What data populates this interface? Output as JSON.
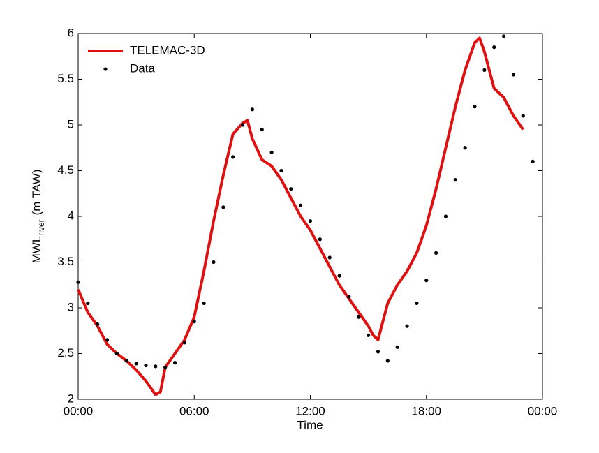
{
  "chart_data": {
    "type": "line",
    "xlabel": "Time",
    "ylabel": {
      "main": "MWL",
      "sub": "river",
      "unit": "(m TAW)"
    },
    "xlim": [
      0,
      24
    ],
    "xticks": [
      {
        "value": 0,
        "label": "00:00"
      },
      {
        "value": 6,
        "label": "06:00"
      },
      {
        "value": 12,
        "label": "12:00"
      },
      {
        "value": 18,
        "label": "18:00"
      },
      {
        "value": 24,
        "label": "00:00"
      }
    ],
    "ylim": [
      2,
      6
    ],
    "yticks": [
      2,
      2.5,
      3,
      3.5,
      4,
      4.5,
      5,
      5.5,
      6
    ],
    "legend": "upper-left",
    "series": [
      {
        "name": "TELEMAC-3D",
        "color": "#e01010",
        "style": "line",
        "x": [
          0,
          0.5,
          1,
          1.5,
          2,
          2.5,
          3,
          3.5,
          4,
          4.25,
          4.5,
          5,
          5.5,
          6,
          6.5,
          7,
          7.5,
          8,
          8.5,
          8.75,
          9,
          9.5,
          10,
          10.5,
          11,
          11.5,
          12,
          12.5,
          13,
          13.5,
          14,
          14.5,
          15,
          15.25,
          15.5,
          15.75,
          16,
          16.5,
          17,
          17.5,
          18,
          18.5,
          19,
          19.5,
          20,
          20.5,
          20.75,
          21,
          21.5,
          22,
          22.5,
          23
        ],
        "values": [
          3.2,
          2.95,
          2.8,
          2.6,
          2.5,
          2.42,
          2.32,
          2.2,
          2.05,
          2.08,
          2.35,
          2.5,
          2.65,
          2.9,
          3.4,
          3.95,
          4.45,
          4.9,
          5.02,
          5.05,
          4.85,
          4.62,
          4.55,
          4.4,
          4.2,
          4.0,
          3.85,
          3.65,
          3.45,
          3.25,
          3.1,
          2.95,
          2.8,
          2.7,
          2.65,
          2.85,
          3.05,
          3.25,
          3.4,
          3.6,
          3.9,
          4.3,
          4.75,
          5.2,
          5.6,
          5.9,
          5.95,
          5.8,
          5.4,
          5.3,
          5.1,
          4.95
        ]
      },
      {
        "name": "Data",
        "color": "#000000",
        "style": "dots",
        "x": [
          0,
          0.5,
          1,
          1.5,
          2,
          2.5,
          3,
          3.5,
          4,
          4.5,
          5,
          5.5,
          6,
          6.5,
          7,
          7.5,
          8,
          8.5,
          9,
          9.5,
          10,
          10.5,
          11,
          11.5,
          12,
          12.5,
          13,
          13.5,
          14,
          14.5,
          15,
          15.5,
          16,
          16.5,
          17,
          17.5,
          18,
          18.5,
          19,
          19.5,
          20,
          20.5,
          21,
          21.5,
          22,
          22.5,
          23,
          23.5
        ],
        "values": [
          3.28,
          3.05,
          2.82,
          2.65,
          2.5,
          2.42,
          2.39,
          2.37,
          2.36,
          2.35,
          2.4,
          2.62,
          2.85,
          3.05,
          3.5,
          4.1,
          4.65,
          5.0,
          5.17,
          4.95,
          4.7,
          4.5,
          4.3,
          4.12,
          3.95,
          3.75,
          3.55,
          3.35,
          3.12,
          2.9,
          2.7,
          2.52,
          2.42,
          2.57,
          2.8,
          3.05,
          3.3,
          3.6,
          4.0,
          4.4,
          4.75,
          5.2,
          5.6,
          5.85,
          5.97,
          5.55,
          5.1,
          4.6
        ]
      }
    ]
  }
}
